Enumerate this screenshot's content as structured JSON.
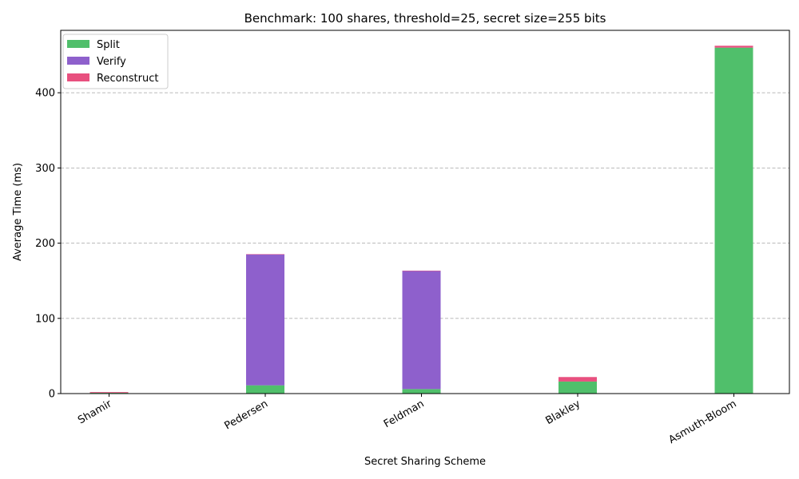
{
  "chart_data": {
    "type": "bar",
    "stacked": true,
    "title": "Benchmark: 100 shares, threshold=25, secret size=255 bits",
    "xlabel": "Secret Sharing Scheme",
    "ylabel": "Average Time (ms)",
    "categories": [
      "Shamir",
      "Pedersen",
      "Feldman",
      "Blakley",
      "Asmuth-Bloom"
    ],
    "series": [
      {
        "name": "Split",
        "color": "#50bf6b",
        "values": [
          1.0,
          11.0,
          6.0,
          16.0,
          460.0
        ]
      },
      {
        "name": "Verify",
        "color": "#8e60cc",
        "values": [
          0.0,
          174.0,
          157.0,
          0.0,
          0.0
        ]
      },
      {
        "name": "Reconstruct",
        "color": "#e8507f",
        "values": [
          1.0,
          0.5,
          0.5,
          6.0,
          2.5
        ]
      }
    ],
    "ylim": [
      0,
      483
    ],
    "yticks": [
      0,
      100,
      200,
      300,
      400
    ],
    "grid": "y-dashed",
    "legend_position": "top-left",
    "x_tick_rotation": "30"
  }
}
